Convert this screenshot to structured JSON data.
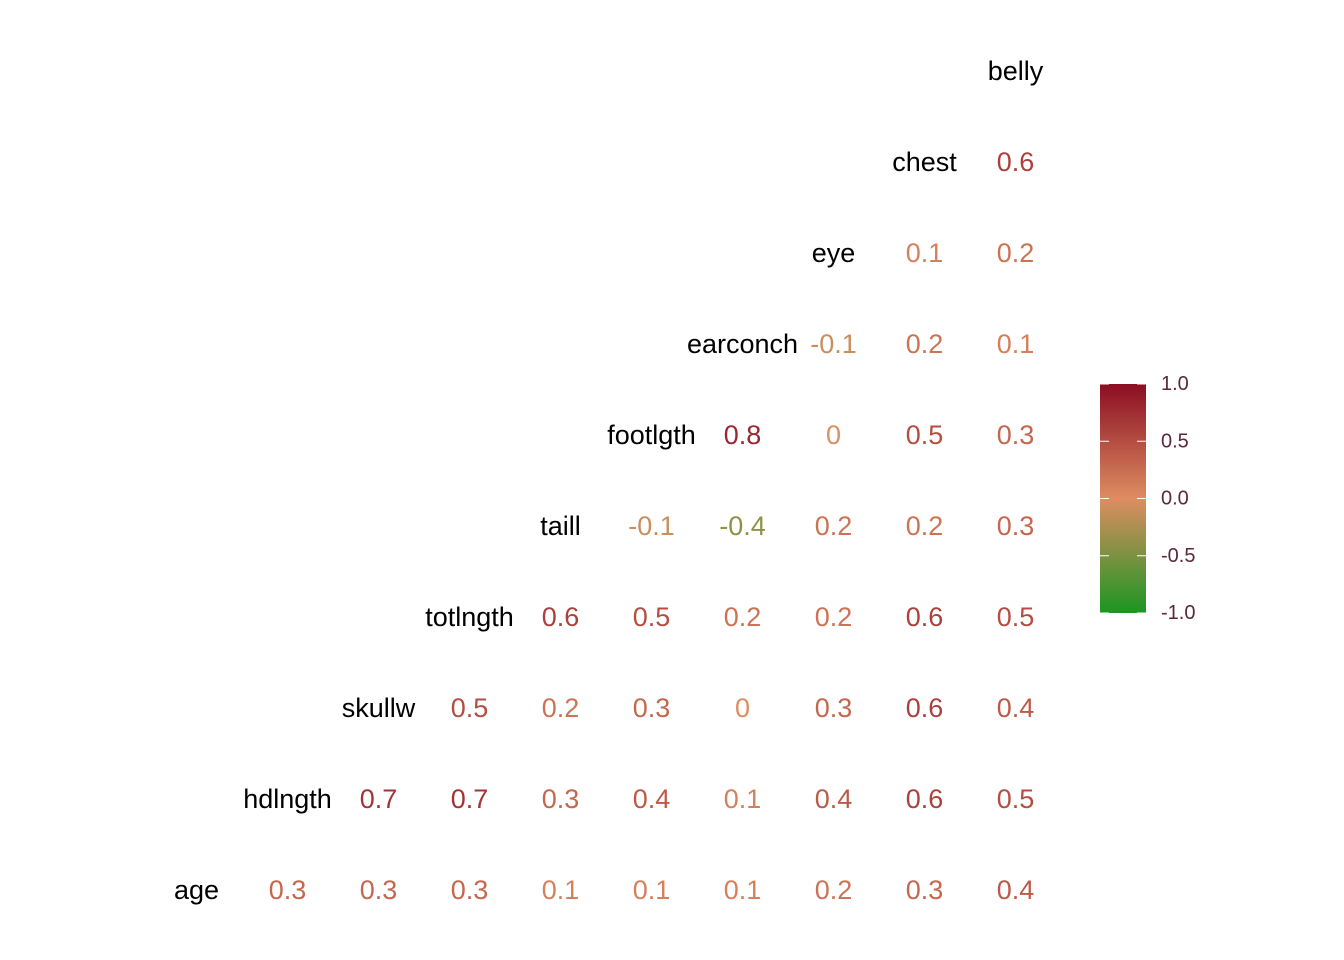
{
  "chart_data": {
    "type": "heatmap",
    "variables": [
      "age",
      "hdlngth",
      "skullw",
      "totlngth",
      "taill",
      "footlgth",
      "earconch",
      "eye",
      "chest",
      "belly"
    ],
    "correlations": [
      {
        "row": "chest",
        "col": "belly",
        "value": 0.6
      },
      {
        "row": "eye",
        "col": "chest",
        "value": 0.1
      },
      {
        "row": "eye",
        "col": "belly",
        "value": 0.2
      },
      {
        "row": "earconch",
        "col": "eye",
        "value": -0.1
      },
      {
        "row": "earconch",
        "col": "chest",
        "value": 0.2
      },
      {
        "row": "earconch",
        "col": "belly",
        "value": 0.1
      },
      {
        "row": "footlgth",
        "col": "earconch",
        "value": 0.8
      },
      {
        "row": "footlgth",
        "col": "eye",
        "value": 0
      },
      {
        "row": "footlgth",
        "col": "chest",
        "value": 0.5
      },
      {
        "row": "footlgth",
        "col": "belly",
        "value": 0.3
      },
      {
        "row": "taill",
        "col": "footlgth",
        "value": -0.1
      },
      {
        "row": "taill",
        "col": "earconch",
        "value": -0.4
      },
      {
        "row": "taill",
        "col": "eye",
        "value": 0.2
      },
      {
        "row": "taill",
        "col": "chest",
        "value": 0.2
      },
      {
        "row": "taill",
        "col": "belly",
        "value": 0.3
      },
      {
        "row": "totlngth",
        "col": "taill",
        "value": 0.6
      },
      {
        "row": "totlngth",
        "col": "footlgth",
        "value": 0.5
      },
      {
        "row": "totlngth",
        "col": "earconch",
        "value": 0.2
      },
      {
        "row": "totlngth",
        "col": "eye",
        "value": 0.2
      },
      {
        "row": "totlngth",
        "col": "chest",
        "value": 0.6
      },
      {
        "row": "totlngth",
        "col": "belly",
        "value": 0.5
      },
      {
        "row": "skullw",
        "col": "totlngth",
        "value": 0.5
      },
      {
        "row": "skullw",
        "col": "taill",
        "value": 0.2
      },
      {
        "row": "skullw",
        "col": "footlgth",
        "value": 0.3
      },
      {
        "row": "skullw",
        "col": "earconch",
        "value": 0
      },
      {
        "row": "skullw",
        "col": "eye",
        "value": 0.3
      },
      {
        "row": "skullw",
        "col": "chest",
        "value": 0.6
      },
      {
        "row": "skullw",
        "col": "belly",
        "value": 0.4
      },
      {
        "row": "hdlngth",
        "col": "skullw",
        "value": 0.7
      },
      {
        "row": "hdlngth",
        "col": "totlngth",
        "value": 0.7
      },
      {
        "row": "hdlngth",
        "col": "taill",
        "value": 0.3
      },
      {
        "row": "hdlngth",
        "col": "footlgth",
        "value": 0.4
      },
      {
        "row": "hdlngth",
        "col": "earconch",
        "value": 0.1
      },
      {
        "row": "hdlngth",
        "col": "eye",
        "value": 0.4
      },
      {
        "row": "hdlngth",
        "col": "chest",
        "value": 0.6
      },
      {
        "row": "hdlngth",
        "col": "belly",
        "value": 0.5
      },
      {
        "row": "age",
        "col": "hdlngth",
        "value": 0.3
      },
      {
        "row": "age",
        "col": "skullw",
        "value": 0.3
      },
      {
        "row": "age",
        "col": "totlngth",
        "value": 0.3
      },
      {
        "row": "age",
        "col": "taill",
        "value": 0.1
      },
      {
        "row": "age",
        "col": "footlgth",
        "value": 0.1
      },
      {
        "row": "age",
        "col": "earconch",
        "value": 0.1
      },
      {
        "row": "age",
        "col": "eye",
        "value": 0.2
      },
      {
        "row": "age",
        "col": "chest",
        "value": 0.3
      },
      {
        "row": "age",
        "col": "belly",
        "value": 0.4
      }
    ],
    "legend": {
      "placement": "right",
      "range": [
        -1,
        1
      ],
      "ticks": [
        "1.0",
        "0.5",
        "0.0",
        "-0.5",
        "-1.0"
      ],
      "tick_values": [
        1.0,
        0.5,
        0.0,
        -0.5,
        -1.0
      ],
      "colors": {
        "low": "#1a9622",
        "mid": "#dd8d62",
        "high": "#8b0d22"
      }
    }
  }
}
